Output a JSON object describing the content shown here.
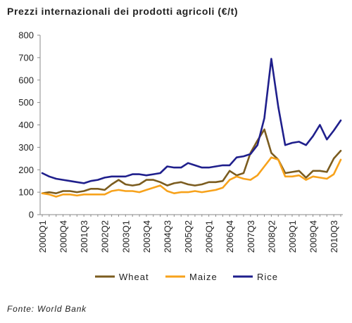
{
  "title": "Prezzi internazionali dei prodotti agricoli (€/t)",
  "source": "Fonte: World Bank",
  "chart_data": {
    "type": "line",
    "ylim": [
      0,
      800
    ],
    "yticks": [
      0,
      100,
      200,
      300,
      400,
      500,
      600,
      700,
      800
    ],
    "grid": false,
    "legend_position": "bottom",
    "x": [
      "2000Q1",
      "2000Q2",
      "2000Q3",
      "2000Q4",
      "2001Q1",
      "2001Q2",
      "2001Q3",
      "2001Q4",
      "2002Q1",
      "2002Q2",
      "2002Q3",
      "2002Q4",
      "2003Q1",
      "2003Q2",
      "2003Q3",
      "2003Q4",
      "2004Q1",
      "2004Q2",
      "2004Q3",
      "2004Q4",
      "2005Q1",
      "2005Q2",
      "2005Q3",
      "2005Q4",
      "2006Q1",
      "2006Q2",
      "2006Q3",
      "2006Q4",
      "2007Q1",
      "2007Q2",
      "2007Q3",
      "2007Q4",
      "2008Q1",
      "2008Q2",
      "2008Q3",
      "2008Q4",
      "2009Q1",
      "2009Q2",
      "2009Q3",
      "2009Q4",
      "2010Q1",
      "2010Q2",
      "2010Q3",
      "2010Q4"
    ],
    "tick_labels": [
      "2000Q1",
      "2000Q4",
      "2001Q3",
      "2002Q2",
      "2003Q1",
      "2003Q4",
      "2004Q3",
      "2005Q2",
      "2006Q1",
      "2006Q4",
      "2007Q3",
      "2008Q2",
      "2009Q1",
      "2009Q4",
      "2010Q3"
    ],
    "series": [
      {
        "name": "Wheat",
        "color": "#7b5c1f",
        "values": [
          95,
          100,
          95,
          105,
          105,
          100,
          105,
          115,
          115,
          110,
          135,
          155,
          135,
          130,
          135,
          155,
          155,
          145,
          130,
          140,
          145,
          135,
          130,
          135,
          145,
          145,
          150,
          195,
          175,
          185,
          275,
          330,
          380,
          275,
          245,
          185,
          190,
          195,
          165,
          195,
          195,
          190,
          250,
          285
        ]
      },
      {
        "name": "Maize",
        "color": "#f7a21b",
        "values": [
          95,
          90,
          80,
          90,
          90,
          85,
          90,
          90,
          90,
          90,
          105,
          110,
          105,
          105,
          100,
          110,
          120,
          130,
          105,
          95,
          100,
          100,
          105,
          100,
          105,
          110,
          120,
          155,
          170,
          160,
          155,
          175,
          215,
          255,
          245,
          170,
          170,
          175,
          155,
          170,
          165,
          160,
          180,
          245
        ]
      },
      {
        "name": "Rice",
        "color": "#1f1f8c",
        "values": [
          185,
          170,
          160,
          155,
          150,
          145,
          140,
          150,
          155,
          165,
          170,
          170,
          170,
          180,
          180,
          175,
          180,
          185,
          215,
          210,
          210,
          230,
          220,
          210,
          210,
          215,
          220,
          220,
          255,
          260,
          270,
          310,
          430,
          695,
          480,
          310,
          320,
          325,
          310,
          350,
          400,
          335,
          375,
          420
        ]
      }
    ]
  }
}
